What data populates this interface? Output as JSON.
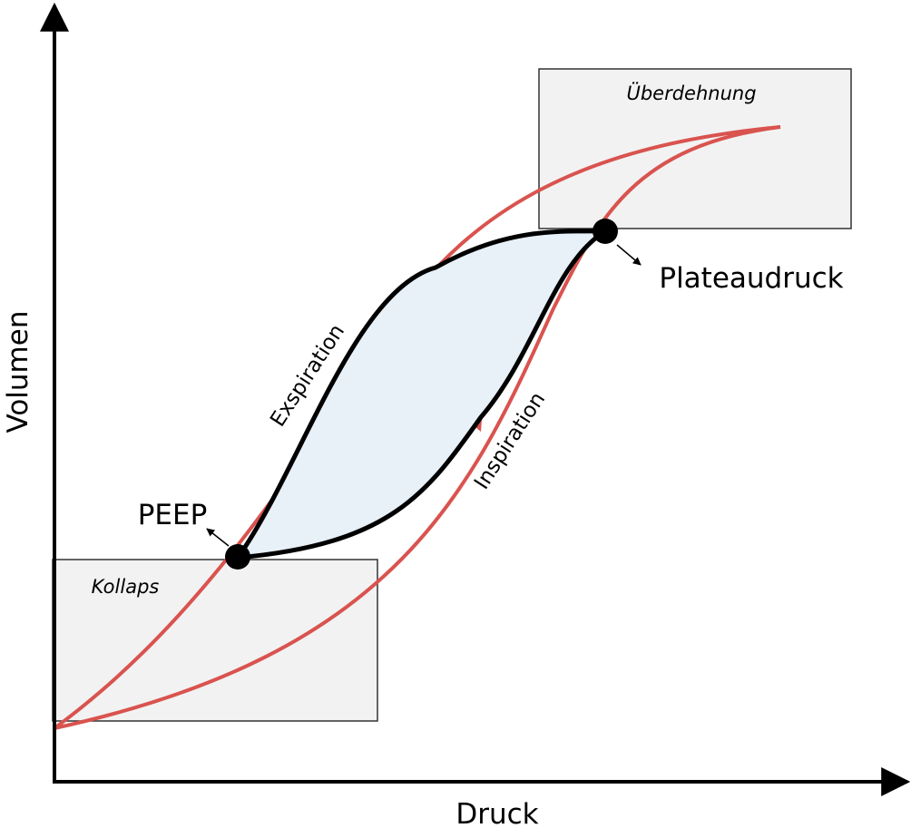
{
  "axes": {
    "x_label": "Druck",
    "y_label": "Volumen"
  },
  "regions": [
    {
      "label": "Überdehnung"
    },
    {
      "label": "Kollaps"
    }
  ],
  "curves": [
    {
      "label": "Exspiration"
    },
    {
      "label": "Inspiration"
    }
  ],
  "points": [
    {
      "label": "PEEP"
    },
    {
      "label": "Plateaudruck"
    }
  ]
}
